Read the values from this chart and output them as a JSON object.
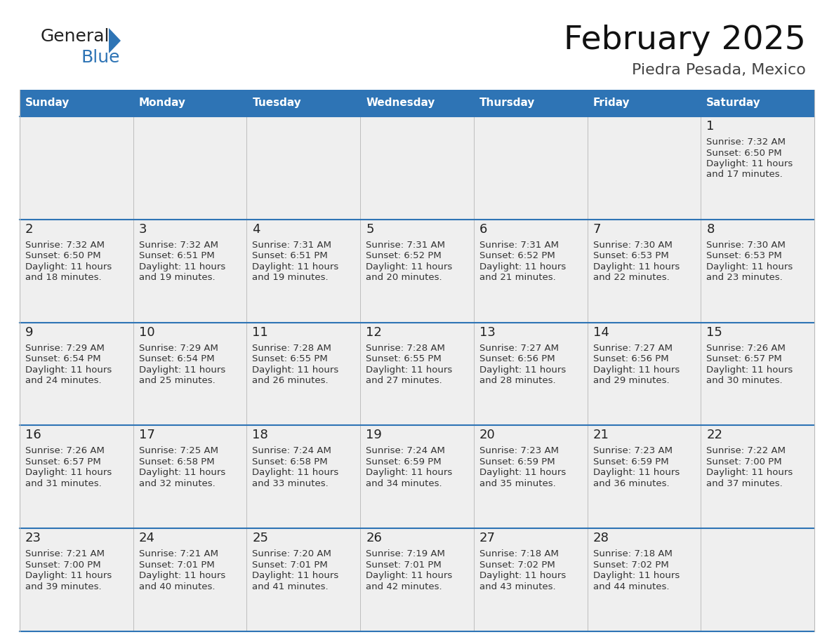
{
  "title": "February 2025",
  "subtitle": "Piedra Pesada, Mexico",
  "days_of_week": [
    "Sunday",
    "Monday",
    "Tuesday",
    "Wednesday",
    "Thursday",
    "Friday",
    "Saturday"
  ],
  "header_bg": "#2E74B5",
  "header_text": "#FFFFFF",
  "cell_bg": "#EFEFEF",
  "day_num_color": "#222222",
  "text_color": "#333333",
  "line_color": "#2E74B5",
  "logo_general_color": "#222222",
  "logo_blue_color": "#2E74B5",
  "calendar_data": [
    [
      null,
      null,
      null,
      null,
      null,
      null,
      {
        "day": 1,
        "sunrise": "7:32 AM",
        "sunset": "6:50 PM",
        "daylight": "11 hours",
        "daylight2": "and 17 minutes."
      }
    ],
    [
      {
        "day": 2,
        "sunrise": "7:32 AM",
        "sunset": "6:50 PM",
        "daylight": "11 hours",
        "daylight2": "and 18 minutes."
      },
      {
        "day": 3,
        "sunrise": "7:32 AM",
        "sunset": "6:51 PM",
        "daylight": "11 hours",
        "daylight2": "and 19 minutes."
      },
      {
        "day": 4,
        "sunrise": "7:31 AM",
        "sunset": "6:51 PM",
        "daylight": "11 hours",
        "daylight2": "and 19 minutes."
      },
      {
        "day": 5,
        "sunrise": "7:31 AM",
        "sunset": "6:52 PM",
        "daylight": "11 hours",
        "daylight2": "and 20 minutes."
      },
      {
        "day": 6,
        "sunrise": "7:31 AM",
        "sunset": "6:52 PM",
        "daylight": "11 hours",
        "daylight2": "and 21 minutes."
      },
      {
        "day": 7,
        "sunrise": "7:30 AM",
        "sunset": "6:53 PM",
        "daylight": "11 hours",
        "daylight2": "and 22 minutes."
      },
      {
        "day": 8,
        "sunrise": "7:30 AM",
        "sunset": "6:53 PM",
        "daylight": "11 hours",
        "daylight2": "and 23 minutes."
      }
    ],
    [
      {
        "day": 9,
        "sunrise": "7:29 AM",
        "sunset": "6:54 PM",
        "daylight": "11 hours",
        "daylight2": "and 24 minutes."
      },
      {
        "day": 10,
        "sunrise": "7:29 AM",
        "sunset": "6:54 PM",
        "daylight": "11 hours",
        "daylight2": "and 25 minutes."
      },
      {
        "day": 11,
        "sunrise": "7:28 AM",
        "sunset": "6:55 PM",
        "daylight": "11 hours",
        "daylight2": "and 26 minutes."
      },
      {
        "day": 12,
        "sunrise": "7:28 AM",
        "sunset": "6:55 PM",
        "daylight": "11 hours",
        "daylight2": "and 27 minutes."
      },
      {
        "day": 13,
        "sunrise": "7:27 AM",
        "sunset": "6:56 PM",
        "daylight": "11 hours",
        "daylight2": "and 28 minutes."
      },
      {
        "day": 14,
        "sunrise": "7:27 AM",
        "sunset": "6:56 PM",
        "daylight": "11 hours",
        "daylight2": "and 29 minutes."
      },
      {
        "day": 15,
        "sunrise": "7:26 AM",
        "sunset": "6:57 PM",
        "daylight": "11 hours",
        "daylight2": "and 30 minutes."
      }
    ],
    [
      {
        "day": 16,
        "sunrise": "7:26 AM",
        "sunset": "6:57 PM",
        "daylight": "11 hours",
        "daylight2": "and 31 minutes."
      },
      {
        "day": 17,
        "sunrise": "7:25 AM",
        "sunset": "6:58 PM",
        "daylight": "11 hours",
        "daylight2": "and 32 minutes."
      },
      {
        "day": 18,
        "sunrise": "7:24 AM",
        "sunset": "6:58 PM",
        "daylight": "11 hours",
        "daylight2": "and 33 minutes."
      },
      {
        "day": 19,
        "sunrise": "7:24 AM",
        "sunset": "6:59 PM",
        "daylight": "11 hours",
        "daylight2": "and 34 minutes."
      },
      {
        "day": 20,
        "sunrise": "7:23 AM",
        "sunset": "6:59 PM",
        "daylight": "11 hours",
        "daylight2": "and 35 minutes."
      },
      {
        "day": 21,
        "sunrise": "7:23 AM",
        "sunset": "6:59 PM",
        "daylight": "11 hours",
        "daylight2": "and 36 minutes."
      },
      {
        "day": 22,
        "sunrise": "7:22 AM",
        "sunset": "7:00 PM",
        "daylight": "11 hours",
        "daylight2": "and 37 minutes."
      }
    ],
    [
      {
        "day": 23,
        "sunrise": "7:21 AM",
        "sunset": "7:00 PM",
        "daylight": "11 hours",
        "daylight2": "and 39 minutes."
      },
      {
        "day": 24,
        "sunrise": "7:21 AM",
        "sunset": "7:01 PM",
        "daylight": "11 hours",
        "daylight2": "and 40 minutes."
      },
      {
        "day": 25,
        "sunrise": "7:20 AM",
        "sunset": "7:01 PM",
        "daylight": "11 hours",
        "daylight2": "and 41 minutes."
      },
      {
        "day": 26,
        "sunrise": "7:19 AM",
        "sunset": "7:01 PM",
        "daylight": "11 hours",
        "daylight2": "and 42 minutes."
      },
      {
        "day": 27,
        "sunrise": "7:18 AM",
        "sunset": "7:02 PM",
        "daylight": "11 hours",
        "daylight2": "and 43 minutes."
      },
      {
        "day": 28,
        "sunrise": "7:18 AM",
        "sunset": "7:02 PM",
        "daylight": "11 hours",
        "daylight2": "and 44 minutes."
      },
      null
    ]
  ],
  "figsize": [
    11.88,
    9.18
  ],
  "dpi": 100
}
